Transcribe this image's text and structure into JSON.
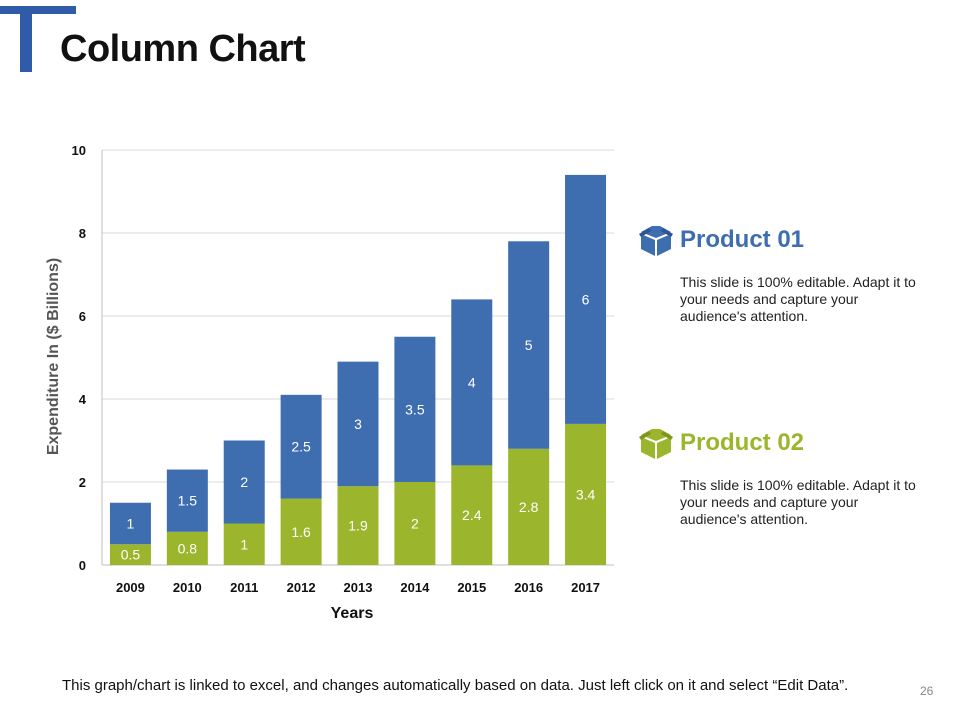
{
  "slide": {
    "title": "Column Chart",
    "footer": "This graph/chart is linked to excel, and changes automatically based on data. Just left click on it and select “Edit Data”.",
    "page_number": "26"
  },
  "colors": {
    "product01": "#3e6db0",
    "product02": "#9bb52c",
    "accent": "#2f5ba8"
  },
  "legend": [
    {
      "name": "Product 01",
      "description": "This slide is 100% editable. Adapt it to your needs and capture your audience's attention.",
      "color": "#3e6db0",
      "icon": "box-icon"
    },
    {
      "name": "Product 02",
      "description": "This slide is 100% editable. Adapt it to your needs and capture your audience's attention.",
      "color": "#9bb52c",
      "icon": "box-icon"
    }
  ],
  "chart_data": {
    "type": "bar",
    "stacked": true,
    "title": "",
    "xlabel": "Years",
    "ylabel": "Expenditure In ($ Billions)",
    "categories": [
      "2009",
      "2010",
      "2011",
      "2012",
      "2013",
      "2014",
      "2015",
      "2016",
      "2017"
    ],
    "series": [
      {
        "name": "Product 02",
        "values": [
          0.5,
          0.8,
          1,
          1.6,
          1.9,
          2,
          2.4,
          2.8,
          3.4
        ],
        "color": "#9bb52c"
      },
      {
        "name": "Product 01",
        "values": [
          1,
          1.5,
          2,
          2.5,
          3,
          3.5,
          4,
          5,
          6
        ],
        "color": "#3e6db0"
      }
    ],
    "ylim": [
      0,
      10
    ],
    "yticks": [
      0,
      2,
      4,
      6,
      8,
      10
    ],
    "grid": true
  }
}
